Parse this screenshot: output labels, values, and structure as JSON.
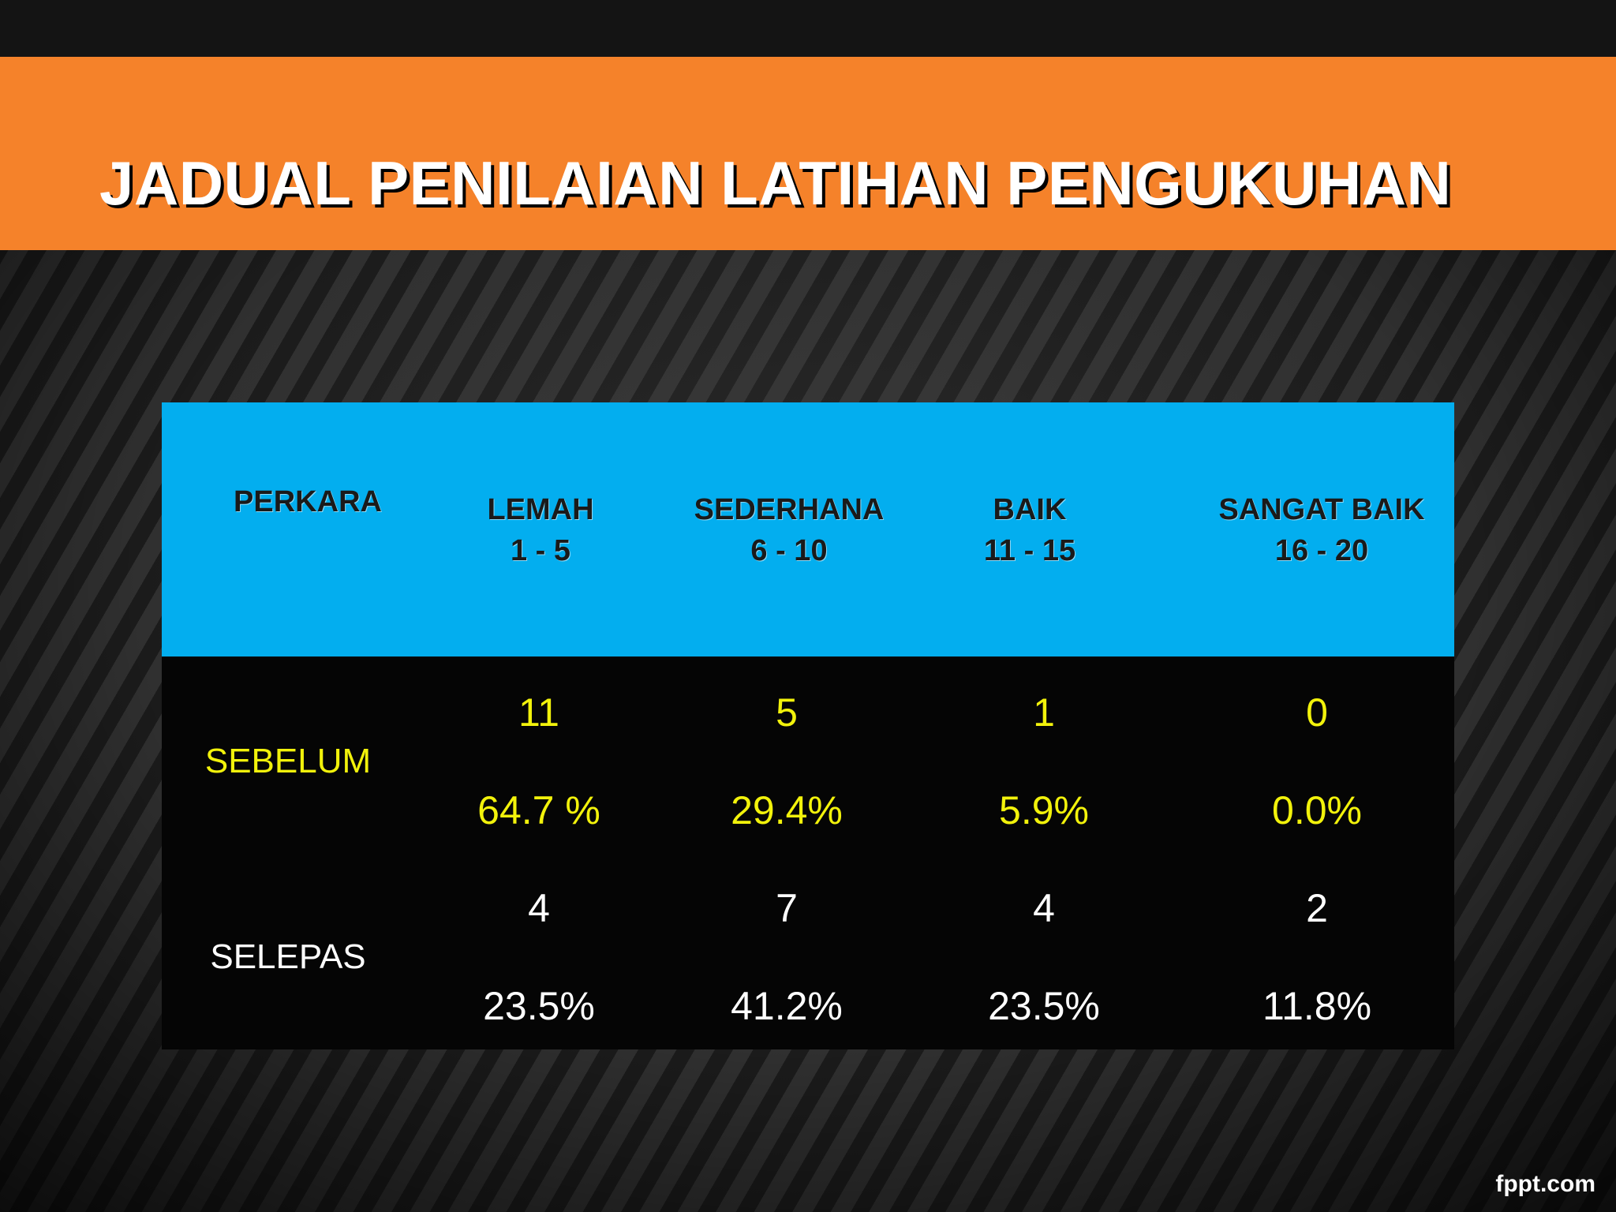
{
  "slide": {
    "title": "JADUAL PENILAIAN LATIHAN PENGUKUHAN",
    "watermark": "fppt.com"
  },
  "table": {
    "item_header": "PERKARA",
    "columns": [
      {
        "name": "LEMAH",
        "range": "1 - 5"
      },
      {
        "name": "SEDERHANA",
        "range": "6 - 10"
      },
      {
        "name": "BAIK",
        "range": "11 - 15"
      },
      {
        "name": "SANGAT BAIK",
        "range": "16 - 20"
      }
    ],
    "rows": [
      {
        "label": "SEBELUM",
        "counts": [
          "11",
          "5",
          "1",
          "0"
        ],
        "percents": [
          "64.7 %",
          "29.4%",
          "5.9%",
          "0.0%"
        ],
        "color": "#f2f20b"
      },
      {
        "label": "SELEPAS",
        "counts": [
          "4",
          "7",
          "4",
          "2"
        ],
        "percents": [
          "23.5%",
          "41.2%",
          "23.5%",
          "11.8%"
        ],
        "color": "#ffffff"
      }
    ]
  },
  "colors": {
    "title_band": "#f5822a",
    "header_bg": "#03aeef",
    "body_bg": "#050505"
  }
}
